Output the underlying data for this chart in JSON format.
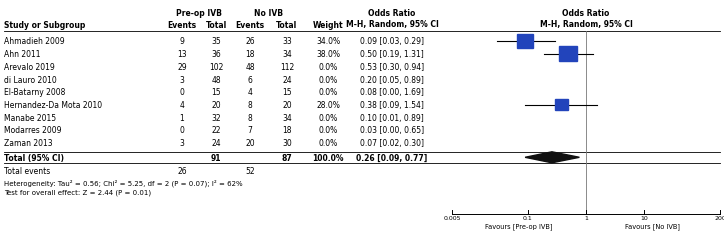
{
  "studies": [
    {
      "name": "Ahmadieh 2009",
      "pre_e": 9,
      "pre_t": 35,
      "no_e": 26,
      "no_t": 33,
      "weight": "34.0%",
      "or": 0.09,
      "ci_lo": 0.03,
      "ci_hi": 0.29,
      "weighted": true
    },
    {
      "name": "Ahn 2011",
      "pre_e": 13,
      "pre_t": 36,
      "no_e": 18,
      "no_t": 34,
      "weight": "38.0%",
      "or": 0.5,
      "ci_lo": 0.19,
      "ci_hi": 1.31,
      "weighted": true
    },
    {
      "name": "Arevalo 2019",
      "pre_e": 29,
      "pre_t": 102,
      "no_e": 48,
      "no_t": 112,
      "weight": "0.0%",
      "or": 0.53,
      "ci_lo": 0.3,
      "ci_hi": 0.94,
      "weighted": false
    },
    {
      "name": "di Lauro 2010",
      "pre_e": 3,
      "pre_t": 48,
      "no_e": 6,
      "no_t": 24,
      "weight": "0.0%",
      "or": 0.2,
      "ci_lo": 0.05,
      "ci_hi": 0.89,
      "weighted": false
    },
    {
      "name": "El-Batarny 2008",
      "pre_e": 0,
      "pre_t": 15,
      "no_e": 4,
      "no_t": 15,
      "weight": "0.0%",
      "or": 0.08,
      "ci_lo": 0.0,
      "ci_hi": 1.69,
      "weighted": false
    },
    {
      "name": "Hernandez-Da Mota 2010",
      "pre_e": 4,
      "pre_t": 20,
      "no_e": 8,
      "no_t": 20,
      "weight": "28.0%",
      "or": 0.38,
      "ci_lo": 0.09,
      "ci_hi": 1.54,
      "weighted": true
    },
    {
      "name": "Manabe 2015",
      "pre_e": 1,
      "pre_t": 32,
      "no_e": 8,
      "no_t": 34,
      "weight": "0.0%",
      "or": 0.1,
      "ci_lo": 0.01,
      "ci_hi": 0.89,
      "weighted": false
    },
    {
      "name": "Modarres 2009",
      "pre_e": 0,
      "pre_t": 22,
      "no_e": 7,
      "no_t": 18,
      "weight": "0.0%",
      "or": 0.03,
      "ci_lo": 0.0,
      "ci_hi": 0.65,
      "weighted": false
    },
    {
      "name": "Zaman 2013",
      "pre_e": 3,
      "pre_t": 24,
      "no_e": 20,
      "no_t": 30,
      "weight": "0.0%",
      "or": 0.07,
      "ci_lo": 0.02,
      "ci_hi": 0.3,
      "weighted": false
    }
  ],
  "weighted_sizes": [
    34.0,
    38.0,
    0.0,
    0.0,
    0.0,
    28.0,
    0.0,
    0.0,
    0.0
  ],
  "total_pre_t": 91,
  "total_no_t": 87,
  "total_pre_e": 26,
  "total_no_e": 52,
  "total_or": 0.26,
  "total_ci_lo": 0.09,
  "total_ci_hi": 0.77,
  "heterogeneity": "Heterogeneity: Tau² = 0.56; Chi² = 5.25, df = 2 (P = 0.07); I² = 62%",
  "overall_test": "Test for overall effect: Z = 2.44 (P = 0.01)",
  "x_ticks": [
    0.005,
    0.1,
    1,
    10,
    200
  ],
  "x_tick_labels": [
    "0.005",
    "0.1",
    "1",
    "10",
    "200"
  ],
  "favour_left": "Favours [Pre-op IVB]",
  "favour_right": "Favours [No IVB]",
  "square_color": "#2244bb",
  "diamond_color": "#111111",
  "ci_line_color": "#000000",
  "ref_line_color": "#777777",
  "bg_color": "#ffffff",
  "text_color": "#000000"
}
